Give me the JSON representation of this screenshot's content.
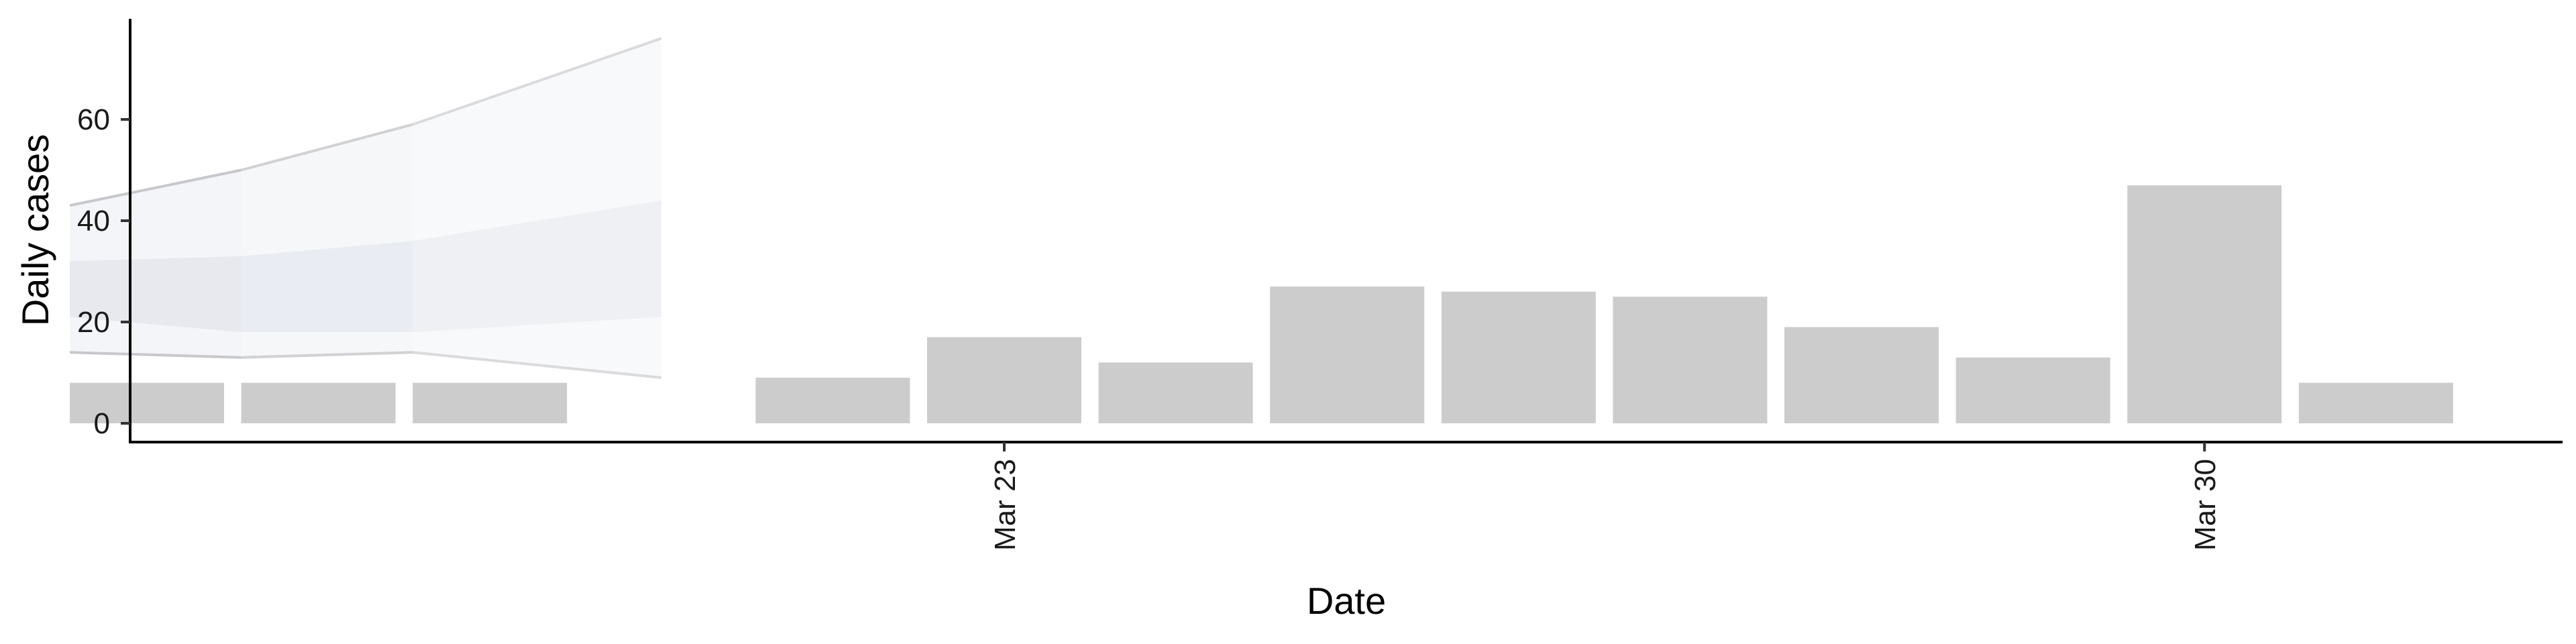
{
  "chart_data": {
    "type": "bar",
    "title": "",
    "xlabel": "Date",
    "ylabel": "Daily cases",
    "x_axis": {
      "type": "date",
      "ticks": [
        {
          "date": "2020-03-23",
          "label": "Mar 23"
        },
        {
          "date": "2020-03-30",
          "label": "Mar 30"
        }
      ]
    },
    "y_axis": {
      "ticks": [
        0,
        20,
        40,
        60
      ],
      "range": [
        -3.5,
        80
      ]
    },
    "series": [
      {
        "type": "bar",
        "dates": [
          "2020-03-18",
          "2020-03-19",
          "2020-03-20",
          "2020-03-22",
          "2020-03-23",
          "2020-03-24",
          "2020-03-25",
          "2020-03-26",
          "2020-03-27",
          "2020-03-28",
          "2020-03-29",
          "2020-03-30",
          "2020-03-31"
        ],
        "values": [
          8,
          8,
          8,
          9,
          17,
          12,
          27,
          26,
          25,
          19,
          13,
          47,
          8
        ],
        "color": "#cccccc"
      }
    ],
    "ribbons": [
      {
        "dates": [
          "2020-03-18",
          "2020-03-19",
          "2020-03-20",
          "2020-03-21"
        ],
        "low_outer": [
          14,
          13,
          14,
          9
        ],
        "low_inner": [
          21,
          18,
          18,
          21
        ],
        "high_inner": [
          32,
          33,
          36,
          44
        ],
        "high_outer": [
          43,
          50,
          59,
          76
        ]
      }
    ],
    "grid": false,
    "legend": "none"
  }
}
